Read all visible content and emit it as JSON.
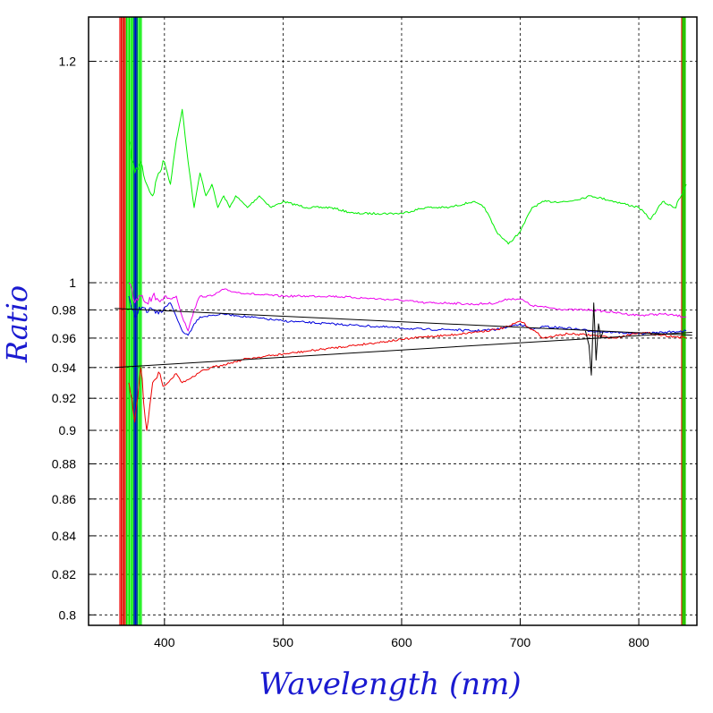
{
  "chart_data": {
    "type": "line",
    "title": "",
    "xlabel": "Wavelength (nm)",
    "ylabel": "Ratio",
    "xlim": [
      336,
      849
    ],
    "ylim": [
      0.795,
      1.25
    ],
    "y_scale": "reciprocal",
    "grid": true,
    "legend": "none",
    "x_ticks": [
      400,
      500,
      600,
      700,
      800
    ],
    "x_tick_labels": [
      "400",
      "500",
      "600",
      "700",
      "800"
    ],
    "y_ticks": [
      0.8,
      0.82,
      0.84,
      0.86,
      0.88,
      0.9,
      0.92,
      0.94,
      0.96,
      0.98,
      1,
      1.2
    ],
    "y_tick_labels": [
      "0.8",
      "0.82",
      "0.84",
      "0.86",
      "0.88",
      "0.9",
      "0.92",
      "0.94",
      "0.96",
      "0.98",
      "1",
      "1.2"
    ],
    "colors": {
      "green": "#00ee00",
      "magenta": "#ee00ee",
      "blue": "#0000dd",
      "red": "#ee0000",
      "black": "#000000",
      "axis_title": "#1a1ad0"
    },
    "series": [
      {
        "color": "green",
        "x": [
          370,
          375,
          380,
          385,
          390,
          395,
          400,
          405,
          410,
          415,
          420,
          425,
          430,
          435,
          440,
          445,
          450,
          455,
          460,
          470,
          480,
          490,
          500,
          520,
          540,
          560,
          580,
          600,
          620,
          640,
          660,
          670,
          680,
          690,
          695,
          700,
          710,
          720,
          740,
          760,
          780,
          800,
          810,
          820,
          830,
          840
        ],
        "y": [
          1.12,
          1.09,
          1.1,
          1.08,
          1.07,
          1.09,
          1.1,
          1.08,
          1.12,
          1.15,
          1.1,
          1.06,
          1.09,
          1.07,
          1.08,
          1.06,
          1.07,
          1.06,
          1.07,
          1.06,
          1.07,
          1.06,
          1.065,
          1.06,
          1.06,
          1.055,
          1.055,
          1.055,
          1.06,
          1.06,
          1.065,
          1.06,
          1.04,
          1.03,
          1.035,
          1.04,
          1.06,
          1.065,
          1.065,
          1.07,
          1.065,
          1.06,
          1.05,
          1.065,
          1.06,
          1.08
        ]
      },
      {
        "color": "magenta",
        "x": [
          370,
          375,
          380,
          385,
          390,
          395,
          400,
          405,
          410,
          415,
          420,
          425,
          430,
          440,
          450,
          460,
          470,
          480,
          500,
          520,
          540,
          560,
          580,
          600,
          620,
          640,
          660,
          680,
          690,
          700,
          710,
          720,
          740,
          760,
          780,
          800,
          820,
          840
        ],
        "y": [
          1.0,
          0.985,
          0.99,
          0.985,
          0.99,
          0.987,
          0.99,
          0.988,
          0.99,
          0.975,
          0.965,
          0.98,
          0.99,
          0.99,
          0.995,
          0.993,
          0.992,
          0.991,
          0.99,
          0.99,
          0.99,
          0.989,
          0.988,
          0.987,
          0.985,
          0.985,
          0.984,
          0.985,
          0.988,
          0.988,
          0.983,
          0.982,
          0.98,
          0.98,
          0.978,
          0.976,
          0.977,
          0.975
        ]
      },
      {
        "color": "blue",
        "x": [
          370,
          375,
          380,
          385,
          390,
          395,
          400,
          405,
          410,
          415,
          420,
          425,
          430,
          440,
          450,
          460,
          470,
          480,
          500,
          520,
          540,
          560,
          580,
          600,
          620,
          640,
          660,
          680,
          690,
          700,
          710,
          720,
          740,
          760,
          780,
          800,
          820,
          840
        ],
        "y": [
          0.99,
          0.975,
          0.98,
          0.978,
          0.98,
          0.977,
          0.982,
          0.985,
          0.975,
          0.965,
          0.962,
          0.97,
          0.975,
          0.976,
          0.977,
          0.976,
          0.975,
          0.974,
          0.972,
          0.971,
          0.97,
          0.969,
          0.968,
          0.967,
          0.966,
          0.966,
          0.965,
          0.966,
          0.968,
          0.97,
          0.966,
          0.968,
          0.967,
          0.965,
          0.964,
          0.963,
          0.964,
          0.965
        ]
      },
      {
        "color": "red",
        "x": [
          370,
          375,
          380,
          385,
          390,
          395,
          400,
          405,
          410,
          415,
          420,
          425,
          430,
          440,
          450,
          460,
          470,
          480,
          500,
          520,
          540,
          560,
          580,
          600,
          620,
          640,
          660,
          680,
          690,
          700,
          710,
          720,
          740,
          760,
          780,
          800,
          820,
          840
        ],
        "y": [
          0.93,
          0.905,
          0.94,
          0.9,
          0.93,
          0.937,
          0.928,
          0.932,
          0.936,
          0.93,
          0.932,
          0.934,
          0.937,
          0.94,
          0.942,
          0.944,
          0.946,
          0.947,
          0.949,
          0.951,
          0.953,
          0.955,
          0.957,
          0.959,
          0.961,
          0.962,
          0.964,
          0.966,
          0.968,
          0.972,
          0.966,
          0.96,
          0.963,
          0.962,
          0.96,
          0.964,
          0.962,
          0.96
        ]
      },
      {
        "color": "black",
        "x": [
          358,
          845
        ],
        "y": [
          0.94,
          0.964
        ]
      },
      {
        "color": "black",
        "x": [
          358,
          845
        ],
        "y": [
          0.981,
          0.962
        ]
      },
      {
        "color": "black",
        "x": [
          755,
          758,
          760,
          762,
          764,
          766,
          768,
          770
        ],
        "y": [
          0.965,
          0.955,
          0.935,
          0.985,
          0.945,
          0.97,
          0.96,
          0.965
        ]
      }
    ]
  }
}
